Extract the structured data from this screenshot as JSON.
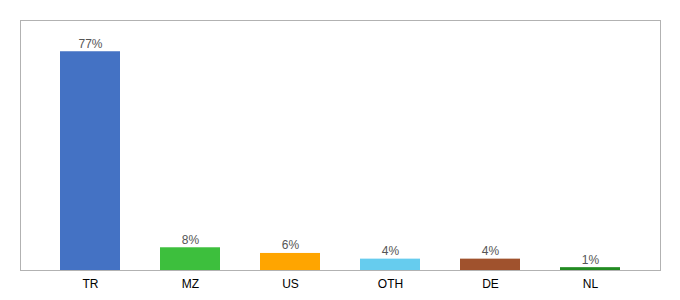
{
  "chart_data": {
    "type": "bar",
    "categories": [
      "TR",
      "MZ",
      "US",
      "OTH",
      "DE",
      "NL"
    ],
    "values": [
      77,
      8,
      6,
      4,
      4,
      1
    ],
    "value_labels": [
      "77%",
      "8%",
      "6%",
      "4%",
      "4%",
      "1%"
    ],
    "colors": [
      "#4472C4",
      "#3DBF3D",
      "#FFA500",
      "#66CCEE",
      "#A0522D",
      "#228B22"
    ],
    "ylim": [
      0,
      88
    ],
    "data_labels": true,
    "tick_labels": "x",
    "grid": false
  }
}
